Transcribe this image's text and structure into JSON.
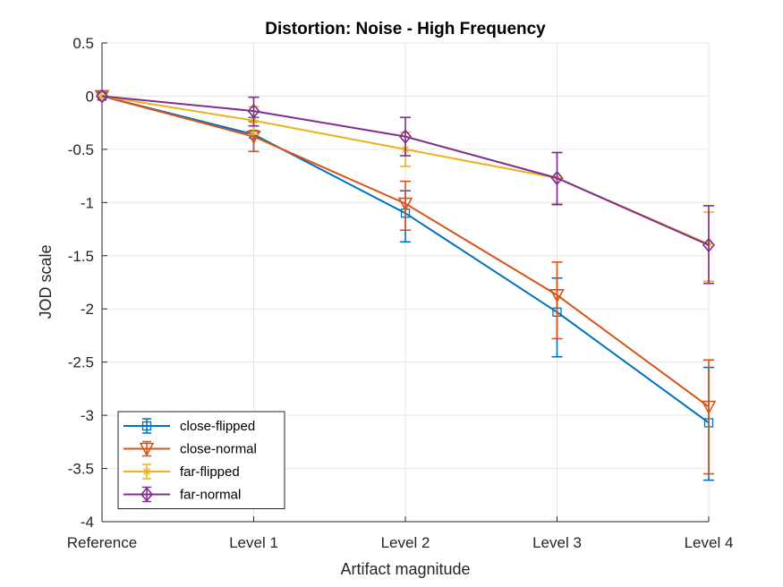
{
  "chart_data": {
    "type": "line",
    "title": "Distortion: Noise - High Frequency",
    "xlabel": "Artifact magnitude",
    "ylabel": "JOD scale",
    "categories": [
      "Reference",
      "Level 1",
      "Level 2",
      "Level 3",
      "Level 4"
    ],
    "ylim": [
      -4,
      0.5
    ],
    "yticks": [
      0.5,
      0,
      -0.5,
      -1,
      -1.5,
      -2,
      -2.5,
      -3,
      -3.5,
      -4
    ],
    "ytick_labels": [
      "0.5",
      "0",
      "-0.5",
      "-1",
      "-1.5",
      "-2",
      "-2.5",
      "-3",
      "-3.5",
      "-4"
    ],
    "grid": true,
    "legend_position": "bottom-left",
    "series": [
      {
        "name": "close-flipped",
        "color": "#0072BD",
        "marker": "square",
        "values": [
          0,
          -0.36,
          -1.1,
          -2.03,
          -3.07
        ],
        "error_low": [
          0,
          -0.52,
          -1.37,
          -2.45,
          -3.61
        ],
        "error_high": [
          0,
          -0.2,
          -0.89,
          -1.71,
          -2.55
        ]
      },
      {
        "name": "close-normal",
        "color": "#D95319",
        "marker": "triangle-down",
        "values": [
          0,
          -0.38,
          -1.01,
          -1.87,
          -2.92
        ],
        "error_low": [
          0,
          -0.52,
          -1.26,
          -2.28,
          -3.55
        ],
        "error_high": [
          0,
          -0.24,
          -0.8,
          -1.56,
          -2.48
        ]
      },
      {
        "name": "far-flipped",
        "color": "#EDB120",
        "marker": "asterisk",
        "values": [
          0,
          -0.23,
          -0.5,
          -0.77,
          -1.39
        ],
        "error_low": [
          0,
          -0.36,
          -0.66,
          -1.01,
          -1.74
        ],
        "error_high": [
          0,
          -0.1,
          -0.34,
          -0.53,
          -1.09
        ]
      },
      {
        "name": "far-normal",
        "color": "#7E2F8E",
        "marker": "diamond",
        "values": [
          0,
          -0.14,
          -0.38,
          -0.77,
          -1.4
        ],
        "error_low": [
          0,
          -0.28,
          -0.56,
          -1.02,
          -1.76
        ],
        "error_high": [
          0,
          -0.01,
          -0.2,
          -0.53,
          -1.03
        ]
      }
    ]
  }
}
